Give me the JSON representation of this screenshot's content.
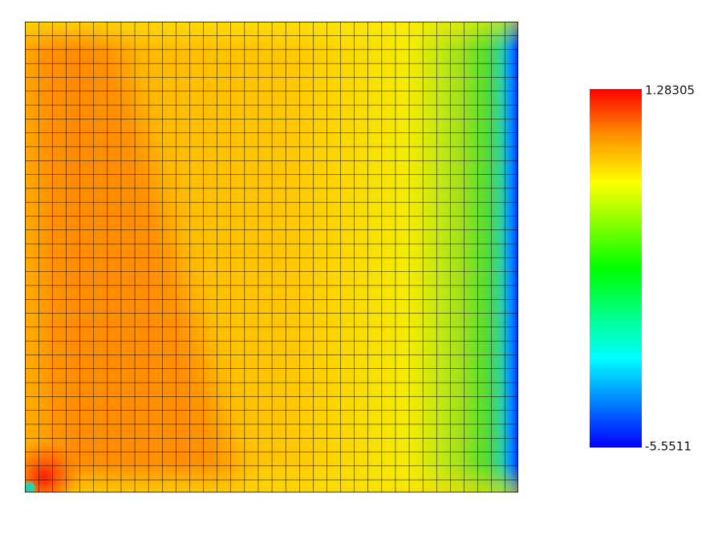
{
  "colorbar": {
    "max_label": "1.28305",
    "min_label": "-5.5511"
  }
}
